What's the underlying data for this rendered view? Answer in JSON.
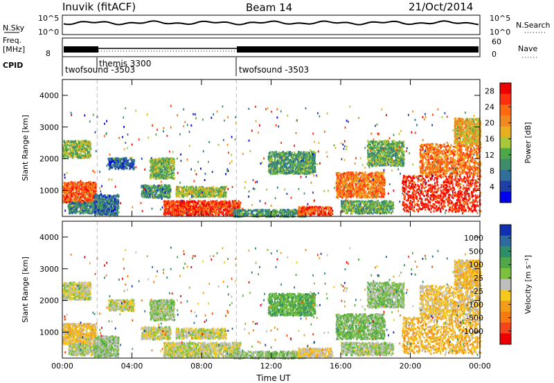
{
  "header": {
    "station": "Inuvik (fitACF)",
    "beam": "Beam 14",
    "date": "21/Oct/2014"
  },
  "strips": {
    "nsky_label": "N.Sky",
    "nsky_ticks": [
      "10^5",
      "10^0"
    ],
    "nsearch_label": "N.Search",
    "nsearch_ticks": [
      "10^5",
      "10^0"
    ],
    "freq_label_1": "Freq.",
    "freq_label_2": "[MHz]",
    "freq_ticks": [
      "8"
    ],
    "nave_label": "Nave",
    "nave_ticks": [
      "60",
      "0"
    ],
    "cpid_label": "CPID",
    "cpid_segments": [
      "twofsound -3503",
      "themis 3300",
      "twofsound -3503"
    ]
  },
  "colors": {
    "power": [
      "#0000ee",
      "#1f3fa8",
      "#2f6f9a",
      "#3e8d6a",
      "#4ea84a",
      "#a8c83a",
      "#e8b020",
      "#f08a20",
      "#ff6a10",
      "#ff3010",
      "#ee0000"
    ],
    "velocity": [
      "#1030b0",
      "#2e6aa0",
      "#2f8e6a",
      "#4fa848",
      "#7cc040",
      "#bebebe",
      "#f4c81c",
      "#f49e18",
      "#f57a14",
      "#f4441a",
      "#ee0000"
    ]
  },
  "chart_data": [
    {
      "type": "heatmap",
      "panel": "power",
      "xlabel": "",
      "ylabel": "Slant Range [km]",
      "x_ticks": [
        "00:00",
        "04:00",
        "08:00",
        "12:00",
        "16:00",
        "20:00",
        "00:00"
      ],
      "y_ticks": [
        1000,
        2000,
        3000,
        4000
      ],
      "xlim_hours": [
        0,
        24
      ],
      "ylim_km": [
        180,
        4500
      ],
      "mode_change_hours": [
        2,
        10
      ],
      "colorbar_label": "Power [dB]",
      "colorbar_ticks": [
        4,
        8,
        12,
        16,
        20,
        24,
        28
      ],
      "colorbar_range": [
        0,
        30
      ],
      "blobs": [
        {
          "t0": 0.0,
          "t1": 1.9,
          "r0": 650,
          "r1": 1300,
          "v": 24
        },
        {
          "t0": 0.0,
          "t1": 1.6,
          "r0": 2050,
          "r1": 2600,
          "v": 14
        },
        {
          "t0": 0.3,
          "t1": 2.5,
          "r0": 300,
          "r1": 650,
          "v": 9
        },
        {
          "t0": 1.8,
          "t1": 3.2,
          "r0": 250,
          "r1": 900,
          "v": 7
        },
        {
          "t0": 2.6,
          "t1": 4.1,
          "r0": 1700,
          "r1": 2050,
          "v": 6
        },
        {
          "t0": 4.5,
          "t1": 6.2,
          "r0": 800,
          "r1": 1200,
          "v": 10
        },
        {
          "t0": 5.0,
          "t1": 6.4,
          "r0": 1400,
          "r1": 2050,
          "v": 13
        },
        {
          "t0": 5.8,
          "t1": 10.2,
          "r0": 250,
          "r1": 700,
          "v": 26
        },
        {
          "t0": 6.5,
          "t1": 9.4,
          "r0": 820,
          "r1": 1150,
          "v": 15
        },
        {
          "t0": 9.8,
          "t1": 14.0,
          "r0": 200,
          "r1": 420,
          "v": 10
        },
        {
          "t0": 11.8,
          "t1": 14.5,
          "r0": 1550,
          "r1": 2250,
          "v": 11
        },
        {
          "t0": 13.5,
          "t1": 15.5,
          "r0": 250,
          "r1": 520,
          "v": 24
        },
        {
          "t0": 15.7,
          "t1": 18.5,
          "r0": 800,
          "r1": 1600,
          "v": 22
        },
        {
          "t0": 16.0,
          "t1": 19.0,
          "r0": 300,
          "r1": 700,
          "v": 12
        },
        {
          "t0": 17.5,
          "t1": 19.6,
          "r0": 1800,
          "r1": 2600,
          "v": 12
        },
        {
          "t0": 19.5,
          "t1": 24.0,
          "r0": 350,
          "r1": 1500,
          "v": 27
        },
        {
          "t0": 20.5,
          "t1": 24.0,
          "r0": 1500,
          "r1": 2500,
          "v": 22
        },
        {
          "t0": 22.5,
          "t1": 24.0,
          "r0": 2500,
          "r1": 3300,
          "v": 18
        }
      ]
    },
    {
      "type": "heatmap",
      "panel": "velocity",
      "xlabel": "Time UT",
      "ylabel": "Slant Range [km]",
      "x_ticks": [
        "00:00",
        "04:00",
        "08:00",
        "12:00",
        "16:00",
        "20:00",
        "00:00"
      ],
      "y_ticks": [
        1000,
        2000,
        3000,
        4000
      ],
      "xlim_hours": [
        0,
        24
      ],
      "ylim_km": [
        180,
        4500
      ],
      "mode_change_hours": [
        2,
        10
      ],
      "colorbar_label": "Velocity [m s⁻¹]",
      "colorbar_ticks": [
        1000,
        500,
        100,
        25,
        -25,
        -100,
        -500,
        -1000
      ],
      "colorbar_range": [
        -1100,
        1100
      ],
      "blobs": [
        {
          "t0": 0.0,
          "t1": 1.9,
          "r0": 650,
          "r1": 1300,
          "v": -250
        },
        {
          "t0": 0.0,
          "t1": 1.6,
          "r0": 2050,
          "r1": 2600,
          "v": 0
        },
        {
          "t0": 0.3,
          "t1": 2.5,
          "r0": 300,
          "r1": 650,
          "v": 60
        },
        {
          "t0": 1.8,
          "t1": 3.2,
          "r0": 250,
          "r1": 900,
          "v": 150
        },
        {
          "t0": 2.6,
          "t1": 4.1,
          "r0": 1700,
          "r1": 2050,
          "v": 0
        },
        {
          "t0": 4.5,
          "t1": 6.2,
          "r0": 800,
          "r1": 1200,
          "v": 0
        },
        {
          "t0": 5.0,
          "t1": 6.4,
          "r0": 1400,
          "r1": 2050,
          "v": 120
        },
        {
          "t0": 5.8,
          "t1": 10.2,
          "r0": 250,
          "r1": 700,
          "v": 0
        },
        {
          "t0": 6.5,
          "t1": 9.4,
          "r0": 820,
          "r1": 1150,
          "v": 0
        },
        {
          "t0": 9.8,
          "t1": 14.0,
          "r0": 200,
          "r1": 420,
          "v": 150
        },
        {
          "t0": 11.8,
          "t1": 14.5,
          "r0": 1550,
          "r1": 2250,
          "v": 350
        },
        {
          "t0": 13.5,
          "t1": 15.5,
          "r0": 250,
          "r1": 520,
          "v": -150
        },
        {
          "t0": 15.7,
          "t1": 18.5,
          "r0": 800,
          "r1": 1600,
          "v": 250
        },
        {
          "t0": 16.0,
          "t1": 19.0,
          "r0": 300,
          "r1": 700,
          "v": 100
        },
        {
          "t0": 17.5,
          "t1": 19.6,
          "r0": 1800,
          "r1": 2600,
          "v": 150
        },
        {
          "t0": 19.5,
          "t1": 24.0,
          "r0": 350,
          "r1": 1500,
          "v": -300
        },
        {
          "t0": 20.5,
          "t1": 24.0,
          "r0": 1500,
          "r1": 2500,
          "v": -200
        },
        {
          "t0": 22.5,
          "t1": 24.0,
          "r0": 2500,
          "r1": 3300,
          "v": -250
        }
      ]
    }
  ]
}
